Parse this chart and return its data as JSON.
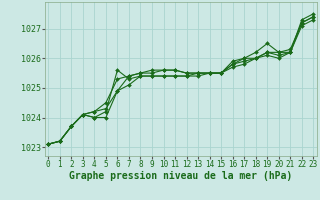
{
  "xlabel": "Graphe pression niveau de la mer (hPa)",
  "hours": [
    0,
    1,
    2,
    3,
    4,
    5,
    6,
    7,
    8,
    9,
    10,
    11,
    12,
    13,
    14,
    15,
    16,
    17,
    18,
    19,
    20,
    21,
    22,
    23
  ],
  "series": [
    [
      1023.1,
      1023.2,
      1023.7,
      1024.1,
      1024.0,
      1024.2,
      1025.6,
      1025.3,
      1025.4,
      1025.4,
      1025.4,
      1025.4,
      1025.4,
      1025.4,
      1025.5,
      1025.5,
      1025.9,
      1026.0,
      1026.2,
      1026.5,
      1026.2,
      1026.2,
      1027.3,
      1027.5
    ],
    [
      1023.1,
      1023.2,
      1023.7,
      1024.1,
      1024.2,
      1024.3,
      1024.9,
      1025.4,
      1025.5,
      1025.5,
      1025.6,
      1025.6,
      1025.5,
      1025.5,
      1025.5,
      1025.5,
      1025.8,
      1025.9,
      1026.0,
      1026.2,
      1026.2,
      1026.3,
      1027.2,
      1027.4
    ],
    [
      1023.1,
      1023.2,
      1023.7,
      1024.1,
      1024.0,
      1024.0,
      1024.9,
      1025.1,
      1025.4,
      1025.4,
      1025.4,
      1025.4,
      1025.4,
      1025.5,
      1025.5,
      1025.5,
      1025.8,
      1026.0,
      1026.0,
      1026.2,
      1026.1,
      1026.2,
      1027.2,
      1027.4
    ],
    [
      1023.1,
      1023.2,
      1023.7,
      1024.1,
      1024.2,
      1024.5,
      1025.3,
      1025.4,
      1025.5,
      1025.6,
      1025.6,
      1025.6,
      1025.5,
      1025.5,
      1025.5,
      1025.5,
      1025.7,
      1025.8,
      1026.0,
      1026.1,
      1026.0,
      1026.2,
      1027.1,
      1027.3
    ]
  ],
  "line_color": "#1a6b1a",
  "marker": "D",
  "markersize": 2.0,
  "bg_color": "#cce8e4",
  "grid_color": "#aad4cf",
  "ylim": [
    1022.7,
    1027.9
  ],
  "yticks": [
    1023,
    1024,
    1025,
    1026,
    1027
  ],
  "xlim": [
    -0.3,
    23.3
  ],
  "xticks": [
    0,
    1,
    2,
    3,
    4,
    5,
    6,
    7,
    8,
    9,
    10,
    11,
    12,
    13,
    14,
    15,
    16,
    17,
    18,
    19,
    20,
    21,
    22,
    23
  ],
  "xlabel_fontsize": 7.0,
  "xlabel_color": "#1a6b1a",
  "tick_fontsize": 5.5,
  "ytick_fontsize": 6.0,
  "linewidth": 0.8
}
